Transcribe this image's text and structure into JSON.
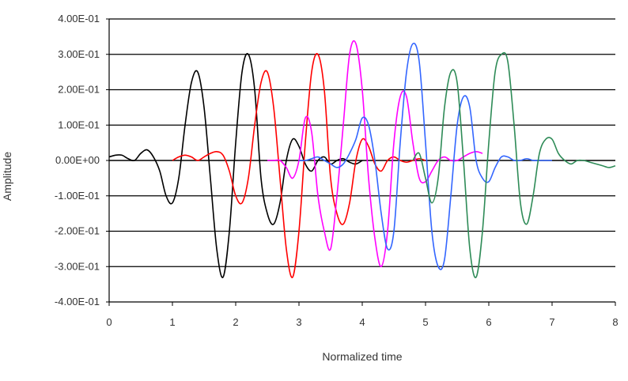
{
  "chart_data": {
    "type": "line",
    "title": "",
    "xlabel": "Normalized time",
    "ylabel": "Amplitude",
    "xlim": [
      0,
      8
    ],
    "ylim": [
      -0.4,
      0.4
    ],
    "x_ticks": [
      "0",
      "1",
      "2",
      "3",
      "4",
      "5",
      "6",
      "7",
      "8"
    ],
    "y_ticks": [
      "4.00E-01",
      "3.00E-01",
      "2.00E-01",
      "1.00E-01",
      "0.00E+00",
      "-1.00E-01",
      "-2.00E-01",
      "-3.00E-01",
      "-4.00E-01"
    ],
    "y_tick_values": [
      0.4,
      0.3,
      0.2,
      0.1,
      0.0,
      -0.1,
      -0.2,
      -0.3,
      -0.4
    ],
    "grid": "horizontal",
    "legend": "none",
    "series": [
      {
        "color": "#000000",
        "x": [
          0.0,
          0.1,
          0.2,
          0.3,
          0.4,
          0.5,
          0.6,
          0.7,
          0.8,
          0.9,
          1.0,
          1.1,
          1.2,
          1.3,
          1.4,
          1.5,
          1.6,
          1.7,
          1.8,
          1.9,
          2.0,
          2.1,
          2.2,
          2.3,
          2.4,
          2.5,
          2.6,
          2.7,
          2.8,
          2.9,
          3.0,
          3.1,
          3.2,
          3.3,
          3.4,
          3.5,
          3.6,
          3.7,
          3.8,
          3.9,
          4.0
        ],
        "y": [
          0.01,
          0.015,
          0.015,
          0.005,
          0.0,
          0.02,
          0.03,
          0.01,
          -0.03,
          -0.1,
          -0.12,
          -0.05,
          0.1,
          0.22,
          0.25,
          0.15,
          -0.05,
          -0.25,
          -0.33,
          -0.2,
          0.05,
          0.25,
          0.3,
          0.2,
          -0.05,
          -0.15,
          -0.18,
          -0.12,
          0.0,
          0.06,
          0.04,
          -0.01,
          -0.03,
          0.0,
          0.01,
          -0.01,
          0.0,
          0.005,
          -0.005,
          -0.01,
          0.0
        ]
      },
      {
        "color": "#ff0000",
        "x": [
          1.0,
          1.1,
          1.2,
          1.3,
          1.4,
          1.5,
          1.6,
          1.7,
          1.8,
          1.9,
          2.0,
          2.1,
          2.2,
          2.3,
          2.4,
          2.5,
          2.6,
          2.7,
          2.8,
          2.9,
          3.0,
          3.1,
          3.2,
          3.3,
          3.4,
          3.5,
          3.6,
          3.7,
          3.8,
          3.9,
          4.0,
          4.1,
          4.2,
          4.3,
          4.4,
          4.5,
          4.6,
          4.7,
          4.8,
          4.9,
          5.0
        ],
        "y": [
          0.0,
          0.01,
          0.015,
          0.01,
          0.0,
          0.01,
          0.02,
          0.025,
          0.015,
          -0.03,
          -0.1,
          -0.12,
          -0.05,
          0.1,
          0.22,
          0.25,
          0.15,
          -0.05,
          -0.25,
          -0.33,
          -0.2,
          0.05,
          0.25,
          0.3,
          0.2,
          -0.05,
          -0.15,
          -0.18,
          -0.12,
          0.0,
          0.06,
          0.04,
          -0.01,
          -0.03,
          0.0,
          0.01,
          0.0,
          -0.005,
          0.0,
          0.005,
          0.0
        ]
      },
      {
        "color": "#ff00ff",
        "x": [
          2.5,
          2.6,
          2.7,
          2.8,
          2.9,
          3.0,
          3.1,
          3.2,
          3.3,
          3.4,
          3.5,
          3.6,
          3.7,
          3.8,
          3.9,
          4.0,
          4.1,
          4.2,
          4.3,
          4.4,
          4.5,
          4.6,
          4.7,
          4.8,
          4.9,
          5.0,
          5.1,
          5.2,
          5.3,
          5.4,
          5.5,
          5.6,
          5.7,
          5.8,
          5.9
        ],
        "y": [
          0.0,
          0.0,
          0.0,
          -0.02,
          -0.05,
          0.0,
          0.12,
          0.08,
          -0.1,
          -0.2,
          -0.25,
          -0.1,
          0.1,
          0.3,
          0.33,
          0.2,
          -0.05,
          -0.22,
          -0.3,
          -0.2,
          0.05,
          0.18,
          0.18,
          0.05,
          -0.05,
          -0.06,
          -0.03,
          0.0,
          0.01,
          0.0,
          0.0,
          0.01,
          0.02,
          0.025,
          0.02
        ]
      },
      {
        "color": "#3366ff",
        "x": [
          3.0,
          3.1,
          3.2,
          3.3,
          3.4,
          3.5,
          3.6,
          3.7,
          3.8,
          3.9,
          4.0,
          4.1,
          4.2,
          4.3,
          4.4,
          4.5,
          4.6,
          4.7,
          4.8,
          4.9,
          5.0,
          5.1,
          5.2,
          5.3,
          5.4,
          5.5,
          5.6,
          5.7,
          5.8,
          5.9,
          6.0,
          6.1,
          6.2,
          6.3,
          6.4,
          6.5,
          6.6,
          6.7,
          6.8,
          6.9,
          7.0
        ],
        "y": [
          0.0,
          0.0,
          0.005,
          0.01,
          0.0,
          -0.01,
          -0.02,
          -0.01,
          0.02,
          0.06,
          0.12,
          0.1,
          0.0,
          -0.15,
          -0.25,
          -0.2,
          0.05,
          0.25,
          0.33,
          0.28,
          0.05,
          -0.2,
          -0.3,
          -0.28,
          -0.1,
          0.1,
          0.18,
          0.15,
          0.0,
          -0.05,
          -0.06,
          -0.02,
          0.01,
          0.01,
          0.0,
          0.0,
          0.005,
          0.0,
          0.0,
          0.0,
          0.0
        ]
      },
      {
        "color": "#2e8b57",
        "x": [
          4.8,
          4.9,
          5.0,
          5.1,
          5.2,
          5.3,
          5.4,
          5.5,
          5.6,
          5.7,
          5.8,
          5.9,
          6.0,
          6.1,
          6.2,
          6.3,
          6.4,
          6.5,
          6.6,
          6.7,
          6.8,
          6.9,
          7.0,
          7.1,
          7.2,
          7.3,
          7.4,
          7.5,
          7.6,
          7.7,
          7.8,
          7.9,
          8.0
        ],
        "y": [
          0.0,
          0.02,
          -0.05,
          -0.12,
          -0.05,
          0.15,
          0.25,
          0.22,
          0.0,
          -0.25,
          -0.33,
          -0.2,
          0.05,
          0.25,
          0.3,
          0.28,
          0.1,
          -0.12,
          -0.18,
          -0.1,
          0.02,
          0.06,
          0.06,
          0.02,
          0.0,
          -0.01,
          0.0,
          0.0,
          -0.005,
          -0.01,
          -0.015,
          -0.02,
          -0.015
        ]
      }
    ]
  }
}
